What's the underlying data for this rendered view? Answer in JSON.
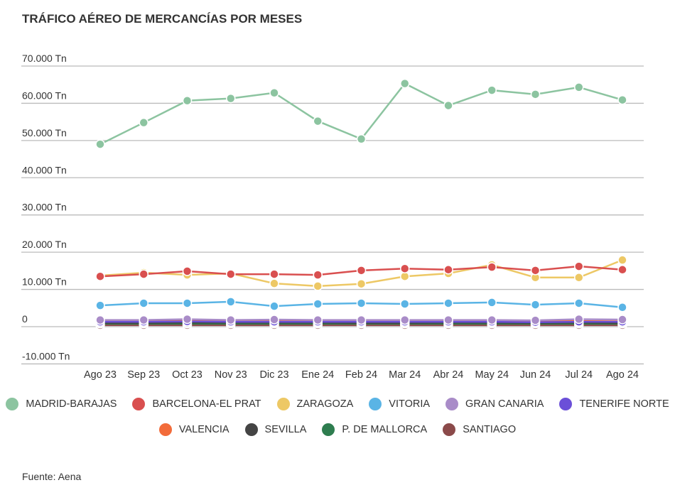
{
  "title": "TRÁFICO AÉREO DE MERCANCÍAS POR MESES",
  "source": "Fuente: Aena",
  "chart_data": {
    "type": "line",
    "title": "TRÁFICO AÉREO DE MERCANCÍAS POR MESES",
    "xlabel": "",
    "ylabel": "",
    "ylim": [
      -10000,
      70000
    ],
    "yticks": [
      {
        "v": 70000,
        "label": "70.000 Tn"
      },
      {
        "v": 60000,
        "label": "60.000 Tn"
      },
      {
        "v": 50000,
        "label": "50.000 Tn"
      },
      {
        "v": 40000,
        "label": "40.000 Tn"
      },
      {
        "v": 30000,
        "label": "30.000 Tn"
      },
      {
        "v": 20000,
        "label": "20.000 Tn"
      },
      {
        "v": 10000,
        "label": "10.000 Tn"
      },
      {
        "v": 0,
        "label": "0"
      },
      {
        "v": -10000,
        "label": "-10.000 Tn"
      }
    ],
    "categories": [
      "Ago 23",
      "Sep 23",
      "Oct 23",
      "Nov 23",
      "Dic 23",
      "Ene 24",
      "Feb 24",
      "Mar 24",
      "Abr 24",
      "May 24",
      "Jun 24",
      "Jul 24",
      "Ago 24"
    ],
    "legend_position": "bottom",
    "series": [
      {
        "name": "MADRID-BARAJAS",
        "color": "#8cc4a0",
        "values": [
          49000,
          54800,
          60700,
          61300,
          62800,
          55200,
          50400,
          65300,
          59400,
          63500,
          62400,
          64300,
          60900
        ]
      },
      {
        "name": "BARCELONA-EL PRAT",
        "color": "#d94f4f",
        "values": [
          13500,
          14100,
          14900,
          14100,
          14100,
          13900,
          15100,
          15600,
          15300,
          16000,
          15100,
          16200,
          15300
        ]
      },
      {
        "name": "ZARAGOZA",
        "color": "#edc865",
        "values": [
          13700,
          14500,
          13900,
          14300,
          11600,
          10900,
          11500,
          13500,
          14300,
          16600,
          13200,
          13200,
          17900
        ]
      },
      {
        "name": "VITORIA",
        "color": "#5ab4e5",
        "values": [
          5700,
          6300,
          6300,
          6700,
          5500,
          6100,
          6300,
          6100,
          6300,
          6500,
          5900,
          6300,
          5200
        ]
      },
      {
        "name": "GRAN CANARIA",
        "color": "#a98cc8",
        "values": [
          1800,
          1800,
          2000,
          1800,
          1900,
          1800,
          1800,
          1800,
          1800,
          1800,
          1700,
          2000,
          1900
        ]
      },
      {
        "name": "TENERIFE NORTE",
        "color": "#6b4fd8",
        "values": [
          1300,
          1300,
          1400,
          1300,
          1300,
          1300,
          1300,
          1300,
          1300,
          1300,
          1200,
          1300,
          1300
        ]
      },
      {
        "name": "VALENCIA",
        "color": "#f26b3a",
        "values": [
          1500,
          1500,
          1600,
          1600,
          1600,
          1500,
          1500,
          1500,
          1600,
          1600,
          1500,
          1500,
          1400
        ]
      },
      {
        "name": "SEVILLA",
        "color": "#444444",
        "values": [
          1000,
          1000,
          1100,
          1100,
          1100,
          1100,
          1000,
          1000,
          1100,
          1100,
          1000,
          1100,
          1000
        ]
      },
      {
        "name": "P. DE MALLORCA",
        "color": "#2e7d4f",
        "values": [
          800,
          800,
          800,
          800,
          800,
          800,
          800,
          800,
          800,
          800,
          800,
          800,
          800
        ]
      },
      {
        "name": "SANTIAGO",
        "color": "#8b4a4a",
        "values": [
          400,
          400,
          400,
          400,
          400,
          400,
          400,
          400,
          400,
          400,
          400,
          400,
          400
        ]
      }
    ]
  }
}
